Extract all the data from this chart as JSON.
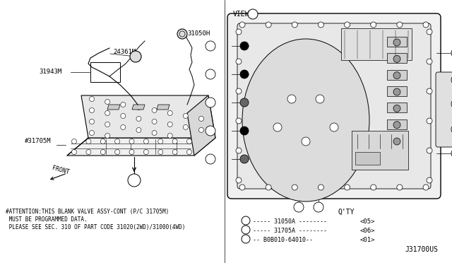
{
  "bg_color": "#ffffff",
  "fig_width": 6.4,
  "fig_height": 3.72,
  "dpi": 100,
  "line_color": "#000000",
  "text_color": "#000000",
  "attention_lines": [
    "#ATTENTION:THIS BLANK VALVE ASSY-CONT (P/C 31705M)",
    " MUST BE PROGRAMMED DATA.",
    " PLEASE SEE SEC. 310 OF PART CODE 31020(2WD)/31000(4WD)"
  ],
  "legend_rows": [
    {
      "sym": "a",
      "part": "31050A",
      "dashes1": "-----",
      "dashes2": "--------",
      "qty": "<05>"
    },
    {
      "sym": "b",
      "part": "31705A",
      "dashes1": "-----",
      "dashes2": "--------",
      "qty": "<06>"
    },
    {
      "sym": "c",
      "part": "B0B010-64010--",
      "dashes1": "--",
      "dashes2": "",
      "qty": "<01>"
    }
  ],
  "ref_code": "J31700US"
}
